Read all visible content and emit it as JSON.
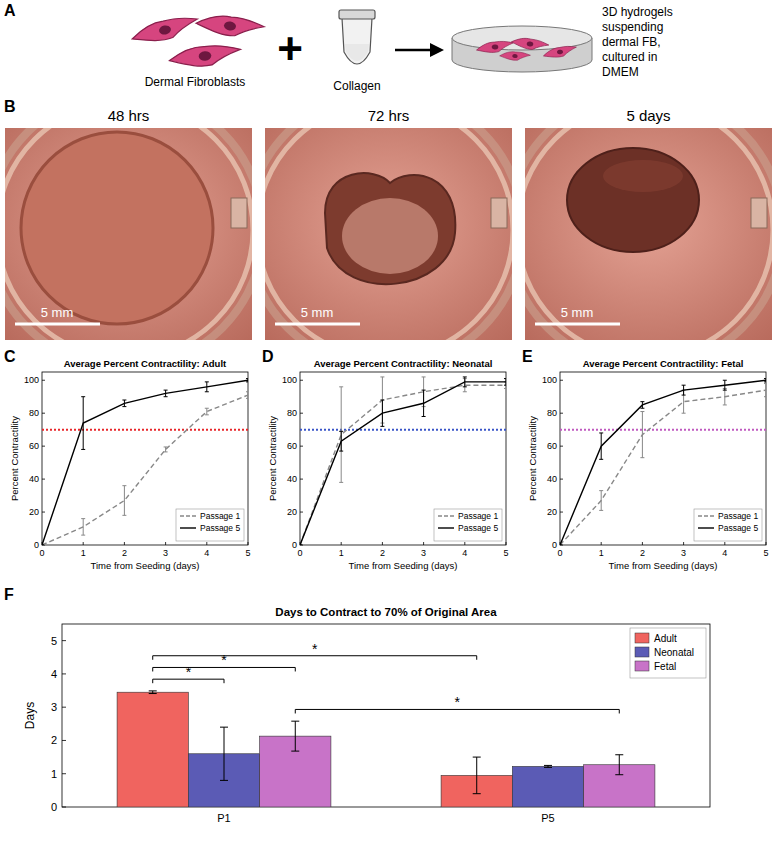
{
  "panel_labels": [
    "A",
    "B",
    "C",
    "D",
    "E",
    "F"
  ],
  "schematic": {
    "cells_label": "Dermal Fibroblasts",
    "operator": "+",
    "tube_label": "Collagen",
    "result_label": [
      "3D hydrogels",
      "suspending",
      "dermal FB,",
      "cultured in",
      "DMEM"
    ]
  },
  "photos": {
    "titles": [
      "48 hrs",
      "72 hrs",
      "5 days"
    ],
    "scale_bar": "5 mm"
  },
  "chart_data": [
    {
      "type": "line",
      "title": "Average Percent Contractility: Adult",
      "xlabel": "Time from Seeding (days)",
      "ylabel": "Percent Contractility",
      "x": [
        0,
        1,
        2,
        3,
        4,
        5
      ],
      "xlim": [
        0,
        5
      ],
      "xticks": [
        0,
        1,
        2,
        3,
        4,
        5
      ],
      "ylim": [
        0,
        105
      ],
      "yticks": [
        0,
        20,
        40,
        60,
        80,
        100
      ],
      "legend": "lower right",
      "reference_line": {
        "value": 70,
        "color": "#e8262a"
      },
      "series": [
        {
          "name": "Passage 1",
          "color": "#888888",
          "line_style": "dashed",
          "values": [
            0,
            11,
            27,
            58,
            81,
            91
          ],
          "errors": [
            0,
            5,
            9,
            1.5,
            2,
            2
          ]
        },
        {
          "name": "Passage 5",
          "color": "#000000",
          "line_style": "solid",
          "values": [
            0,
            74,
            86,
            92,
            96,
            100
          ],
          "errors": [
            0,
            16,
            2,
            2,
            3,
            1
          ]
        }
      ]
    },
    {
      "type": "line",
      "title": "Average Percent Contractility: Neonatal",
      "xlabel": "Time from Seeding (days)",
      "ylabel": "Percent Contractility",
      "x": [
        0,
        1,
        2,
        3,
        4,
        5
      ],
      "xlim": [
        0,
        5
      ],
      "xticks": [
        0,
        1,
        2,
        3,
        4,
        5
      ],
      "ylim": [
        0,
        105
      ],
      "yticks": [
        0,
        20,
        40,
        60,
        80,
        100
      ],
      "legend": "lower right",
      "reference_line": {
        "value": 70,
        "color": "#3a55c8"
      },
      "series": [
        {
          "name": "Passage 1",
          "color": "#888888",
          "line_style": "dashed",
          "values": [
            0,
            67,
            88,
            93,
            97,
            97
          ],
          "errors": [
            0,
            29,
            14,
            9,
            4,
            2
          ]
        },
        {
          "name": "Passage 5",
          "color": "#000000",
          "line_style": "solid",
          "values": [
            0,
            63,
            80,
            86,
            99,
            99
          ],
          "errors": [
            0,
            6,
            8,
            8,
            3,
            2
          ]
        }
      ]
    },
    {
      "type": "line",
      "title": "Average Percent Contractility: Fetal",
      "xlabel": "Time from Seeding (days)",
      "ylabel": "Percent Contractility",
      "x": [
        0,
        1,
        2,
        3,
        4,
        5
      ],
      "xlim": [
        0,
        5
      ],
      "xticks": [
        0,
        1,
        2,
        3,
        4,
        5
      ],
      "ylim": [
        0,
        105
      ],
      "yticks": [
        0,
        20,
        40,
        60,
        80,
        100
      ],
      "legend": "lower right",
      "reference_line": {
        "value": 70,
        "color": "#c05ac0"
      },
      "series": [
        {
          "name": "Passage 1",
          "color": "#888888",
          "line_style": "dashed",
          "values": [
            0,
            27,
            67,
            87,
            90,
            94
          ],
          "errors": [
            0,
            6,
            14,
            7,
            5,
            4
          ]
        },
        {
          "name": "Passage 5",
          "color": "#000000",
          "line_style": "solid",
          "values": [
            0,
            60,
            85,
            94,
            97,
            100
          ],
          "errors": [
            0,
            8,
            2,
            3,
            3,
            1
          ]
        }
      ]
    },
    {
      "type": "bar",
      "title": "Days to Contract to 70% of Original Area",
      "ylabel": "Days",
      "categories": [
        "P1",
        "P5"
      ],
      "ylim": [
        0,
        5.5
      ],
      "yticks": [
        0,
        1,
        2,
        3,
        4,
        5
      ],
      "legend": "upper right",
      "series": [
        {
          "name": "Adult",
          "color": "#f0645f",
          "values": [
            3.45,
            0.95
          ],
          "errors": [
            0.04,
            0.55
          ]
        },
        {
          "name": "Neonatal",
          "color": "#5b5bb5",
          "values": [
            1.6,
            1.22
          ],
          "errors": [
            0.8,
            0.03
          ]
        },
        {
          "name": "Fetal",
          "color": "#c873c8",
          "values": [
            2.13,
            1.27
          ],
          "errors": [
            0.45,
            0.3
          ]
        }
      ],
      "significance": [
        {
          "group1": "P1",
          "series1": "Adult",
          "group2": "P1",
          "series2": "Neonatal",
          "label": "*"
        },
        {
          "group1": "P1",
          "series1": "Adult",
          "group2": "P1",
          "series2": "Fetal",
          "label": "*"
        },
        {
          "group1": "P1",
          "series1": "Adult",
          "group2": "P5",
          "series2": "Adult",
          "label": "*"
        },
        {
          "group1": "P1",
          "series1": "Fetal",
          "group2": "P5",
          "series2": "Fetal",
          "label": "*"
        }
      ]
    }
  ]
}
